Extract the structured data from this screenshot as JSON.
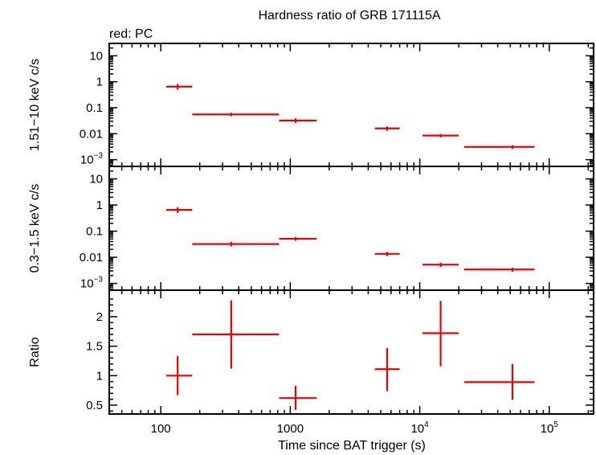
{
  "chart_data": {
    "type": "scatter",
    "title": "Hardness ratio of GRB 171115A",
    "subtitle": "red: PC",
    "xlabel": "Time since BAT trigger (s)",
    "xscale": "log",
    "xlim": [
      40,
      220000
    ],
    "x_tick_labels": [
      {
        "value": 100,
        "base": "100",
        "exp": ""
      },
      {
        "value": 1000,
        "base": "1000",
        "exp": ""
      },
      {
        "value": 10000,
        "base": "10",
        "exp": "4"
      },
      {
        "value": 100000,
        "base": "10",
        "exp": "5"
      }
    ],
    "color": "#ee0000",
    "panels": [
      {
        "ylabel": "1.51−10 keV c/s",
        "yscale": "log",
        "ylim": [
          0.00055,
          30
        ],
        "y_tick_labels": [
          {
            "value": 10,
            "base": "10",
            "exp": ""
          },
          {
            "value": 1,
            "base": "1",
            "exp": ""
          },
          {
            "value": 0.1,
            "base": "0.1",
            "exp": ""
          },
          {
            "value": 0.01,
            "base": "0.01",
            "exp": ""
          },
          {
            "value": 0.001,
            "base": "10",
            "exp": "−3"
          }
        ],
        "points": [
          {
            "x": 135,
            "xlo": 110,
            "xhi": 175,
            "y": 0.65,
            "ylo": 0.5,
            "yhi": 0.82
          },
          {
            "x": 350,
            "xlo": 175,
            "xhi": 820,
            "y": 0.055,
            "ylo": 0.047,
            "yhi": 0.064
          },
          {
            "x": 1100,
            "xlo": 820,
            "xhi": 1600,
            "y": 0.032,
            "ylo": 0.026,
            "yhi": 0.039
          },
          {
            "x": 5600,
            "xlo": 4500,
            "xhi": 7000,
            "y": 0.016,
            "ylo": 0.013,
            "yhi": 0.019
          },
          {
            "x": 14500,
            "xlo": 10500,
            "xhi": 20000,
            "y": 0.0085,
            "ylo": 0.0072,
            "yhi": 0.0098
          },
          {
            "x": 52000,
            "xlo": 22000,
            "xhi": 77000,
            "y": 0.0031,
            "ylo": 0.0026,
            "yhi": 0.0036
          }
        ]
      },
      {
        "ylabel": "0.3−1.5 keV c/s",
        "yscale": "log",
        "ylim": [
          0.00055,
          30
        ],
        "y_tick_labels": [
          {
            "value": 10,
            "base": "10",
            "exp": ""
          },
          {
            "value": 1,
            "base": "1",
            "exp": ""
          },
          {
            "value": 0.1,
            "base": "0.1",
            "exp": ""
          },
          {
            "value": 0.01,
            "base": "0.01",
            "exp": ""
          },
          {
            "value": 0.001,
            "base": "10",
            "exp": "−3"
          }
        ],
        "points": [
          {
            "x": 135,
            "xlo": 110,
            "xhi": 175,
            "y": 0.65,
            "ylo": 0.5,
            "yhi": 0.82
          },
          {
            "x": 350,
            "xlo": 175,
            "xhi": 820,
            "y": 0.032,
            "ylo": 0.026,
            "yhi": 0.039
          },
          {
            "x": 1100,
            "xlo": 820,
            "xhi": 1600,
            "y": 0.051,
            "ylo": 0.043,
            "yhi": 0.06
          },
          {
            "x": 5600,
            "xlo": 4500,
            "xhi": 7000,
            "y": 0.0135,
            "ylo": 0.011,
            "yhi": 0.016
          },
          {
            "x": 14500,
            "xlo": 10500,
            "xhi": 20000,
            "y": 0.0052,
            "ylo": 0.0043,
            "yhi": 0.0062
          },
          {
            "x": 52000,
            "xlo": 22000,
            "xhi": 77000,
            "y": 0.0034,
            "ylo": 0.0028,
            "yhi": 0.004
          }
        ]
      },
      {
        "ylabel": "Ratio",
        "yscale": "linear",
        "ylim": [
          0.35,
          2.45
        ],
        "y_tick_labels": [
          {
            "value": 2,
            "base": "2",
            "exp": ""
          },
          {
            "value": 1.5,
            "base": "1.5",
            "exp": ""
          },
          {
            "value": 1,
            "base": "1",
            "exp": ""
          },
          {
            "value": 0.5,
            "base": "0.5",
            "exp": ""
          }
        ],
        "points": [
          {
            "x": 135,
            "xlo": 110,
            "xhi": 175,
            "y": 1.0,
            "ylo": 0.67,
            "yhi": 1.33
          },
          {
            "x": 350,
            "xlo": 175,
            "xhi": 820,
            "y": 1.7,
            "ylo": 1.12,
            "yhi": 2.28
          },
          {
            "x": 1100,
            "xlo": 820,
            "xhi": 1600,
            "y": 0.62,
            "ylo": 0.42,
            "yhi": 0.83
          },
          {
            "x": 5600,
            "xlo": 4500,
            "xhi": 7000,
            "y": 1.11,
            "ylo": 0.74,
            "yhi": 1.47
          },
          {
            "x": 14500,
            "xlo": 10500,
            "xhi": 20000,
            "y": 1.72,
            "ylo": 1.16,
            "yhi": 2.27
          },
          {
            "x": 52000,
            "xlo": 22000,
            "xhi": 77000,
            "y": 0.89,
            "ylo": 0.59,
            "yhi": 1.2
          }
        ]
      }
    ]
  }
}
